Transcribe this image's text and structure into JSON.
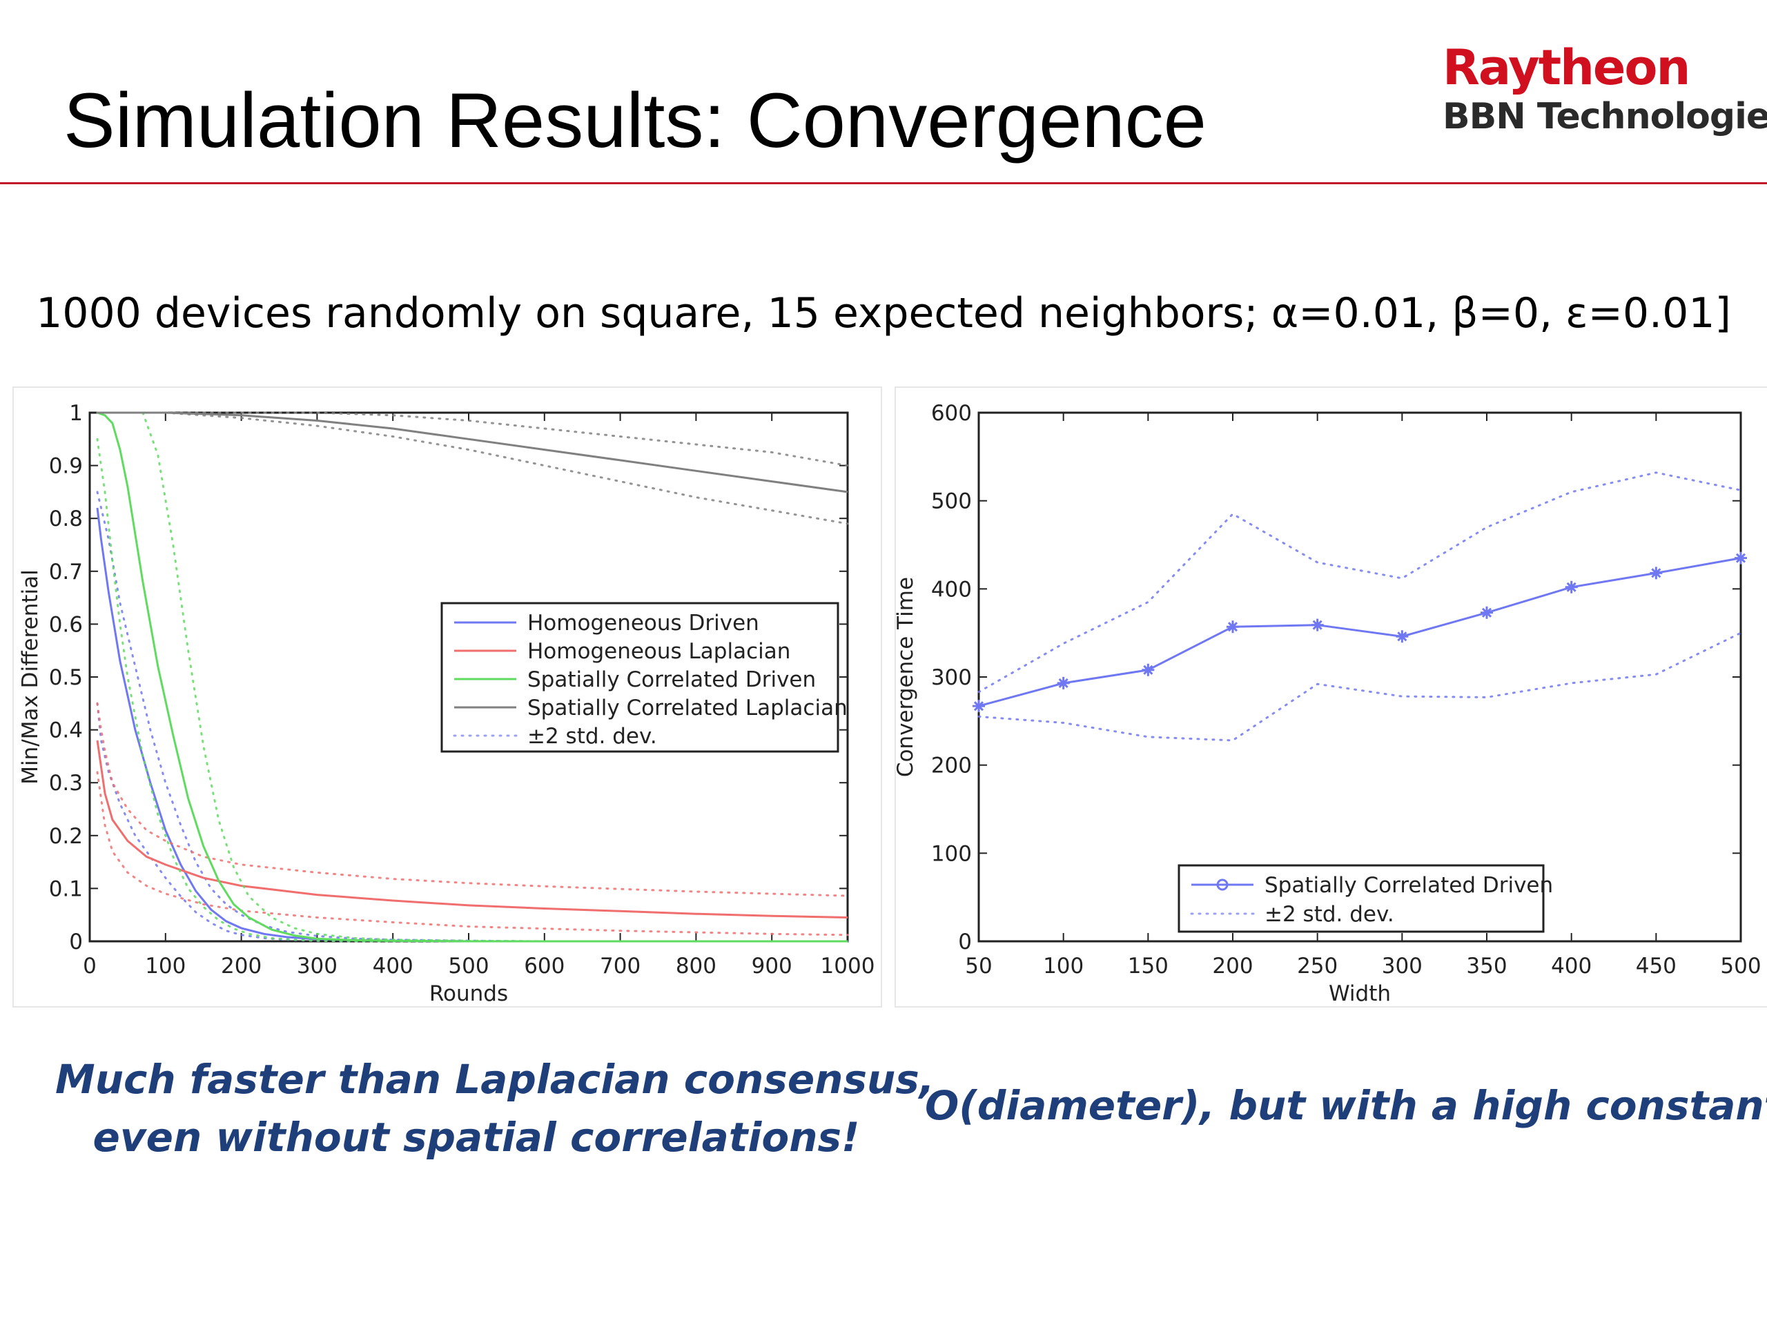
{
  "slide": {
    "title": "Simulation Results: Convergence",
    "subtitle": "1000 devices randomly on square, 15 expected neighbors; α=0.01, β=0, ε=0.01]",
    "caption_left_line1": "Much faster than Laplacian consensus,",
    "caption_left_line2": "even without spatial correlations!",
    "caption_right": "O(diameter), but with a high constant."
  },
  "logo": {
    "top": "Raytheon",
    "bottom": "BBN Technologies"
  },
  "colors": {
    "title_rule": "#c0182a",
    "logo_red": "#d0101f",
    "caption_blue": "#1f3f7a",
    "homogeneous_driven": "#6f78f2",
    "homogeneous_laplacian": "#f06e6e",
    "spatial_driven": "#5fdc5f",
    "spatial_laplacian": "#808080"
  },
  "chart_data": [
    {
      "type": "line",
      "xlabel": "Rounds",
      "ylabel": "Min/Max Differential",
      "xlim": [
        0,
        1000
      ],
      "ylim": [
        0,
        1
      ],
      "xticks": [
        "0",
        "100",
        "200",
        "300",
        "400",
        "500",
        "600",
        "700",
        "800",
        "900",
        "1000"
      ],
      "yticks": [
        "0",
        "0.1",
        "0.2",
        "0.3",
        "0.4",
        "0.5",
        "0.6",
        "0.7",
        "0.8",
        "0.9",
        "1"
      ],
      "legend_position": "center-right",
      "legend": [
        "Homogeneous Driven",
        "Homogeneous Laplacian",
        "Spatially Correlated Driven",
        "Spatially Correlated Laplacian",
        "±2 std. dev."
      ],
      "series": [
        {
          "name": "Homogeneous Driven",
          "color": "#6f78f2",
          "x": [
            10,
            15,
            25,
            40,
            60,
            80,
            100,
            120,
            140,
            160,
            180,
            200,
            230,
            260,
            300,
            350,
            400,
            500,
            600,
            700,
            800,
            900,
            1000
          ],
          "y": [
            0.82,
            0.76,
            0.66,
            0.53,
            0.4,
            0.3,
            0.21,
            0.145,
            0.095,
            0.06,
            0.038,
            0.025,
            0.014,
            0.008,
            0.004,
            0.002,
            0.001,
            0,
            0,
            0,
            0,
            0,
            0
          ],
          "upper": [
            0.85,
            0.82,
            0.76,
            0.64,
            0.52,
            0.4,
            0.3,
            0.22,
            0.15,
            0.1,
            0.07,
            0.05,
            0.03,
            0.018,
            0.01,
            0.005,
            0.003,
            0.001,
            0,
            0,
            0,
            0,
            0
          ],
          "lower": [
            0.45,
            0.38,
            0.32,
            0.26,
            0.2,
            0.16,
            0.12,
            0.085,
            0.055,
            0.035,
            0.02,
            0.012,
            0.006,
            0.003,
            0.001,
            0,
            0,
            0,
            0,
            0,
            0,
            0,
            0
          ]
        },
        {
          "name": "Homogeneous Laplacian",
          "color": "#f06e6e",
          "x": [
            10,
            15,
            20,
            30,
            50,
            75,
            100,
            150,
            200,
            300,
            400,
            500,
            600,
            700,
            800,
            900,
            1000
          ],
          "y": [
            0.38,
            0.33,
            0.28,
            0.23,
            0.19,
            0.16,
            0.145,
            0.12,
            0.105,
            0.088,
            0.077,
            0.068,
            0.062,
            0.057,
            0.052,
            0.048,
            0.045
          ],
          "upper": [
            0.45,
            0.4,
            0.36,
            0.3,
            0.25,
            0.21,
            0.19,
            0.16,
            0.145,
            0.13,
            0.118,
            0.11,
            0.104,
            0.099,
            0.094,
            0.09,
            0.086
          ],
          "lower": [
            0.32,
            0.27,
            0.22,
            0.17,
            0.13,
            0.105,
            0.09,
            0.07,
            0.058,
            0.045,
            0.036,
            0.028,
            0.024,
            0.02,
            0.017,
            0.014,
            0.012
          ]
        },
        {
          "name": "Spatially Correlated Driven",
          "color": "#5fdc5f",
          "x": [
            10,
            20,
            30,
            40,
            50,
            70,
            90,
            110,
            130,
            150,
            170,
            190,
            210,
            240,
            270,
            300,
            350,
            400,
            500,
            600,
            700,
            800,
            900,
            1000
          ],
          "y": [
            1.0,
            0.995,
            0.98,
            0.93,
            0.86,
            0.68,
            0.52,
            0.39,
            0.27,
            0.18,
            0.115,
            0.07,
            0.045,
            0.022,
            0.011,
            0.005,
            0.002,
            0.001,
            0,
            0,
            0,
            0,
            0,
            0
          ],
          "upper": [
            1.0,
            1.0,
            1.0,
            1.0,
            1.0,
            1.0,
            0.92,
            0.75,
            0.55,
            0.37,
            0.23,
            0.14,
            0.085,
            0.045,
            0.025,
            0.014,
            0.006,
            0.003,
            0.001,
            0,
            0,
            0,
            0,
            0
          ],
          "lower": [
            0.95,
            0.85,
            0.72,
            0.6,
            0.5,
            0.35,
            0.24,
            0.16,
            0.1,
            0.065,
            0.04,
            0.024,
            0.014,
            0.006,
            0.003,
            0.001,
            0,
            0,
            0,
            0,
            0,
            0,
            0,
            0
          ]
        },
        {
          "name": "Spatially Correlated Laplacian",
          "color": "#808080",
          "x": [
            10,
            100,
            200,
            300,
            400,
            500,
            600,
            700,
            800,
            900,
            1000
          ],
          "y": [
            1.0,
            1.0,
            0.995,
            0.985,
            0.97,
            0.95,
            0.93,
            0.91,
            0.89,
            0.87,
            0.85
          ],
          "upper": [
            1.0,
            1.0,
            1.0,
            1.0,
            0.995,
            0.985,
            0.97,
            0.955,
            0.94,
            0.925,
            0.9
          ],
          "lower": [
            1.0,
            1.0,
            0.99,
            0.975,
            0.955,
            0.93,
            0.9,
            0.87,
            0.84,
            0.815,
            0.79
          ]
        }
      ]
    },
    {
      "type": "line",
      "xlabel": "Width",
      "ylabel": "Convergence Time",
      "xlim": [
        50,
        500
      ],
      "ylim": [
        0,
        600
      ],
      "xticks": [
        "50",
        "100",
        "150",
        "200",
        "250",
        "300",
        "350",
        "400",
        "450",
        "500"
      ],
      "yticks": [
        "0",
        "100",
        "200",
        "300",
        "400",
        "500",
        "600"
      ],
      "legend_position": "lower-center",
      "legend": [
        "Spatially Correlated Driven",
        "±2 std. dev."
      ],
      "series": [
        {
          "name": "Spatially Correlated Driven",
          "color": "#6f78f2",
          "x": [
            50,
            100,
            150,
            200,
            250,
            300,
            350,
            400,
            450,
            500
          ],
          "y": [
            267,
            293,
            308,
            357,
            359,
            346,
            373,
            402,
            418,
            435
          ],
          "upper": [
            283,
            338,
            385,
            485,
            430,
            412,
            470,
            510,
            532,
            512
          ],
          "lower": [
            255,
            248,
            232,
            228,
            292,
            278,
            277,
            293,
            303,
            350
          ]
        }
      ]
    }
  ]
}
